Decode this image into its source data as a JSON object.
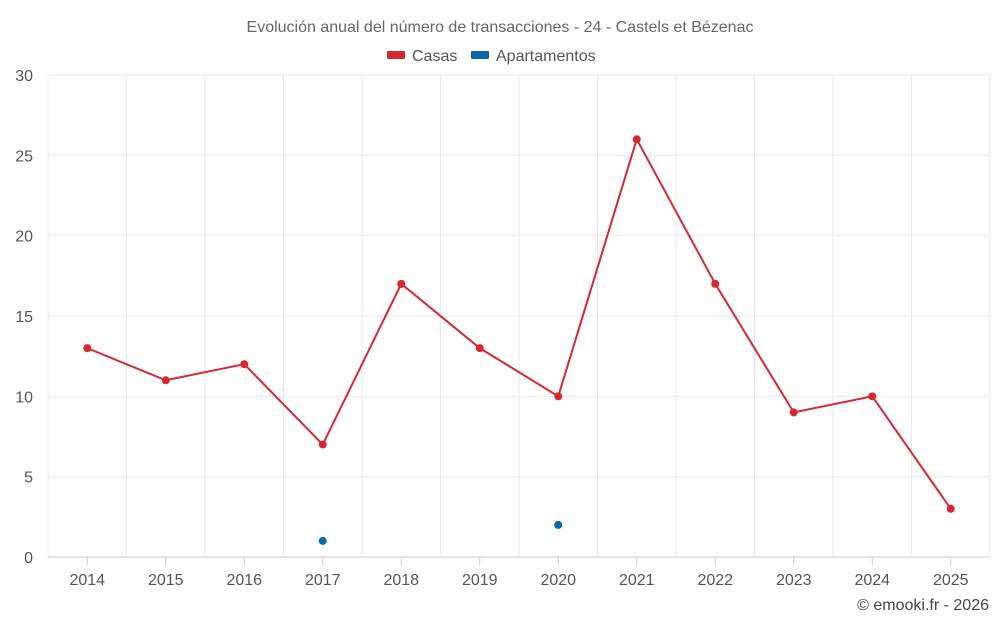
{
  "chart_data": {
    "type": "line",
    "title": "Evolución anual del número de transacciones - 24 - Castels et Bézenac",
    "categories": [
      "2014",
      "2015",
      "2016",
      "2017",
      "2018",
      "2019",
      "2020",
      "2021",
      "2022",
      "2023",
      "2024",
      "2025"
    ],
    "series": [
      {
        "name": "Casas",
        "color": "#d7282f",
        "values": [
          13,
          11,
          12,
          7,
          17,
          13,
          10,
          26,
          17,
          9,
          10,
          3
        ]
      },
      {
        "name": "Apartamentos",
        "color": "#046ba4",
        "values": [
          null,
          null,
          null,
          1,
          null,
          null,
          2,
          null,
          null,
          null,
          null,
          null
        ]
      }
    ],
    "ylim": [
      0,
      30
    ],
    "yticks": [
      0,
      5,
      10,
      15,
      20,
      25,
      30
    ],
    "xlabel": "",
    "ylabel": "",
    "grid": true,
    "legend_position": "top-center"
  },
  "credit": "© emooki.fr - 2026"
}
